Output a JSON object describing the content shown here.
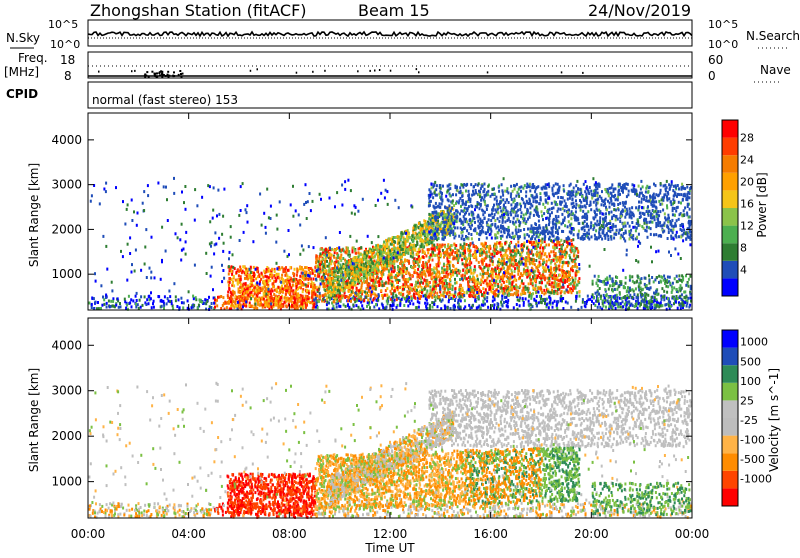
{
  "header": {
    "title": "Zhongshan Station (fitACF)",
    "beam": "Beam 15",
    "date": "24/Nov/2019"
  },
  "strip": {
    "nsky_label": "N.Sky",
    "nsky_ticks": [
      "10^5",
      "10^0"
    ],
    "nsearch_label": "N.Search",
    "freq_label": "Freq.",
    "freq_unit": "[MHz]",
    "freq_ticks": [
      "18",
      "8"
    ],
    "nave_label": "Nave",
    "nave_ticks": [
      "60",
      "0"
    ],
    "cpid_label": "CPID",
    "cpid_text": "normal (fast stereo) 153"
  },
  "colors": {
    "power": [
      "#0000ff",
      "#1f4db8",
      "#2e7d32",
      "#4caf50",
      "#8bc34a",
      "#f5c518",
      "#ffa000",
      "#f57c00",
      "#ff3d00",
      "#ff0000"
    ],
    "velocity": [
      "#ff0000",
      "#ff4500",
      "#ff8c00",
      "#ffb347",
      "#bdbdbd",
      "#c0c0c0",
      "#7bc043",
      "#2e8b57",
      "#1f4db8",
      "#0000ff"
    ]
  },
  "chart_data": [
    {
      "type": "heatmap",
      "name": "power-panel",
      "ylabel": "Slant Range [km]",
      "yticks": [
        "4000",
        "3000",
        "2000",
        "1000"
      ],
      "colorbar_label": "Power [dB]",
      "colorbar_ticks": [
        "28",
        "24",
        "20",
        "16",
        "12",
        "8",
        "4"
      ],
      "ylim": [
        200,
        4600
      ],
      "xlim": [
        0,
        24
      ],
      "clim": [
        0,
        30
      ]
    },
    {
      "type": "heatmap",
      "name": "velocity-panel",
      "ylabel": "Slant Range [km]",
      "yticks": [
        "4000",
        "3000",
        "2000",
        "1000"
      ],
      "colorbar_label": "Velocity [m s^-1]",
      "colorbar_ticks": [
        "1000",
        "500",
        "100",
        "25",
        "-25",
        "-100",
        "-500",
        "-1000"
      ],
      "ylim": [
        200,
        4600
      ],
      "xlim": [
        0,
        24
      ]
    }
  ],
  "xaxis": {
    "ticks": [
      "00:00",
      "04:00",
      "08:00",
      "12:00",
      "16:00",
      "20:00",
      "00:00"
    ],
    "label": "Time UT"
  }
}
